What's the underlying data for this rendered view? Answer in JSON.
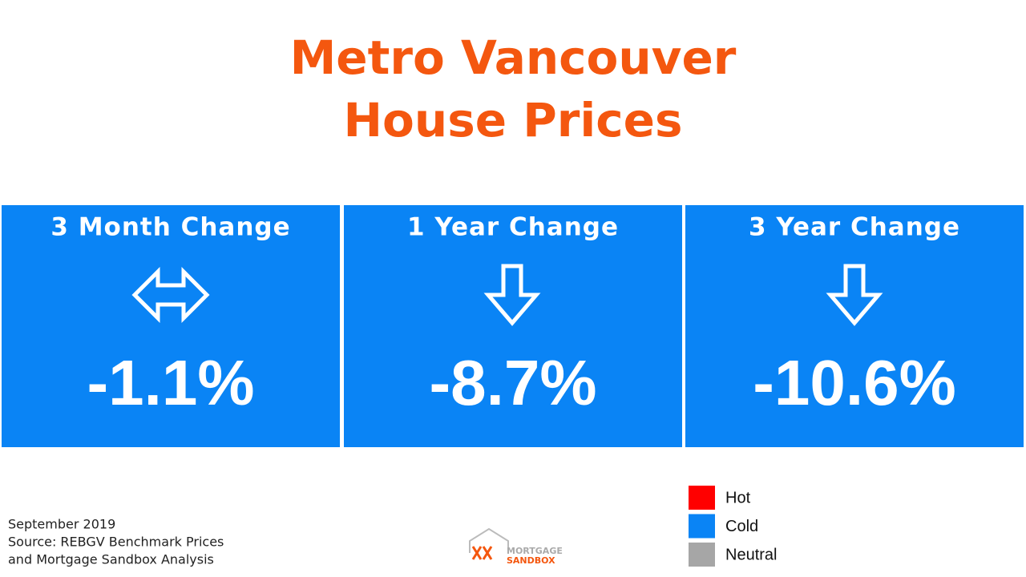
{
  "header": {
    "title": [
      "Metro Vancouver",
      "House Prices"
    ]
  },
  "cards": [
    {
      "label": "3 Month Change",
      "value": "-1.1%"
    },
    {
      "label": "1 Year Change",
      "value": "-8.7%"
    },
    {
      "label": "3 Year Change",
      "value": "-10.6%"
    }
  ],
  "legend": [
    {
      "name": "Hot",
      "color": "#ff0000"
    },
    {
      "name": "Cold",
      "color": "#0a84f5"
    },
    {
      "name": "Neutral",
      "color": "#a6a6a6"
    }
  ],
  "footer": [
    "September 2019",
    "Source: REBGV Benchmark Prices",
    "and Mortgage Sandbox Analysis"
  ],
  "logo": [
    "MORTGAGE",
    "SANDBOX"
  ]
}
